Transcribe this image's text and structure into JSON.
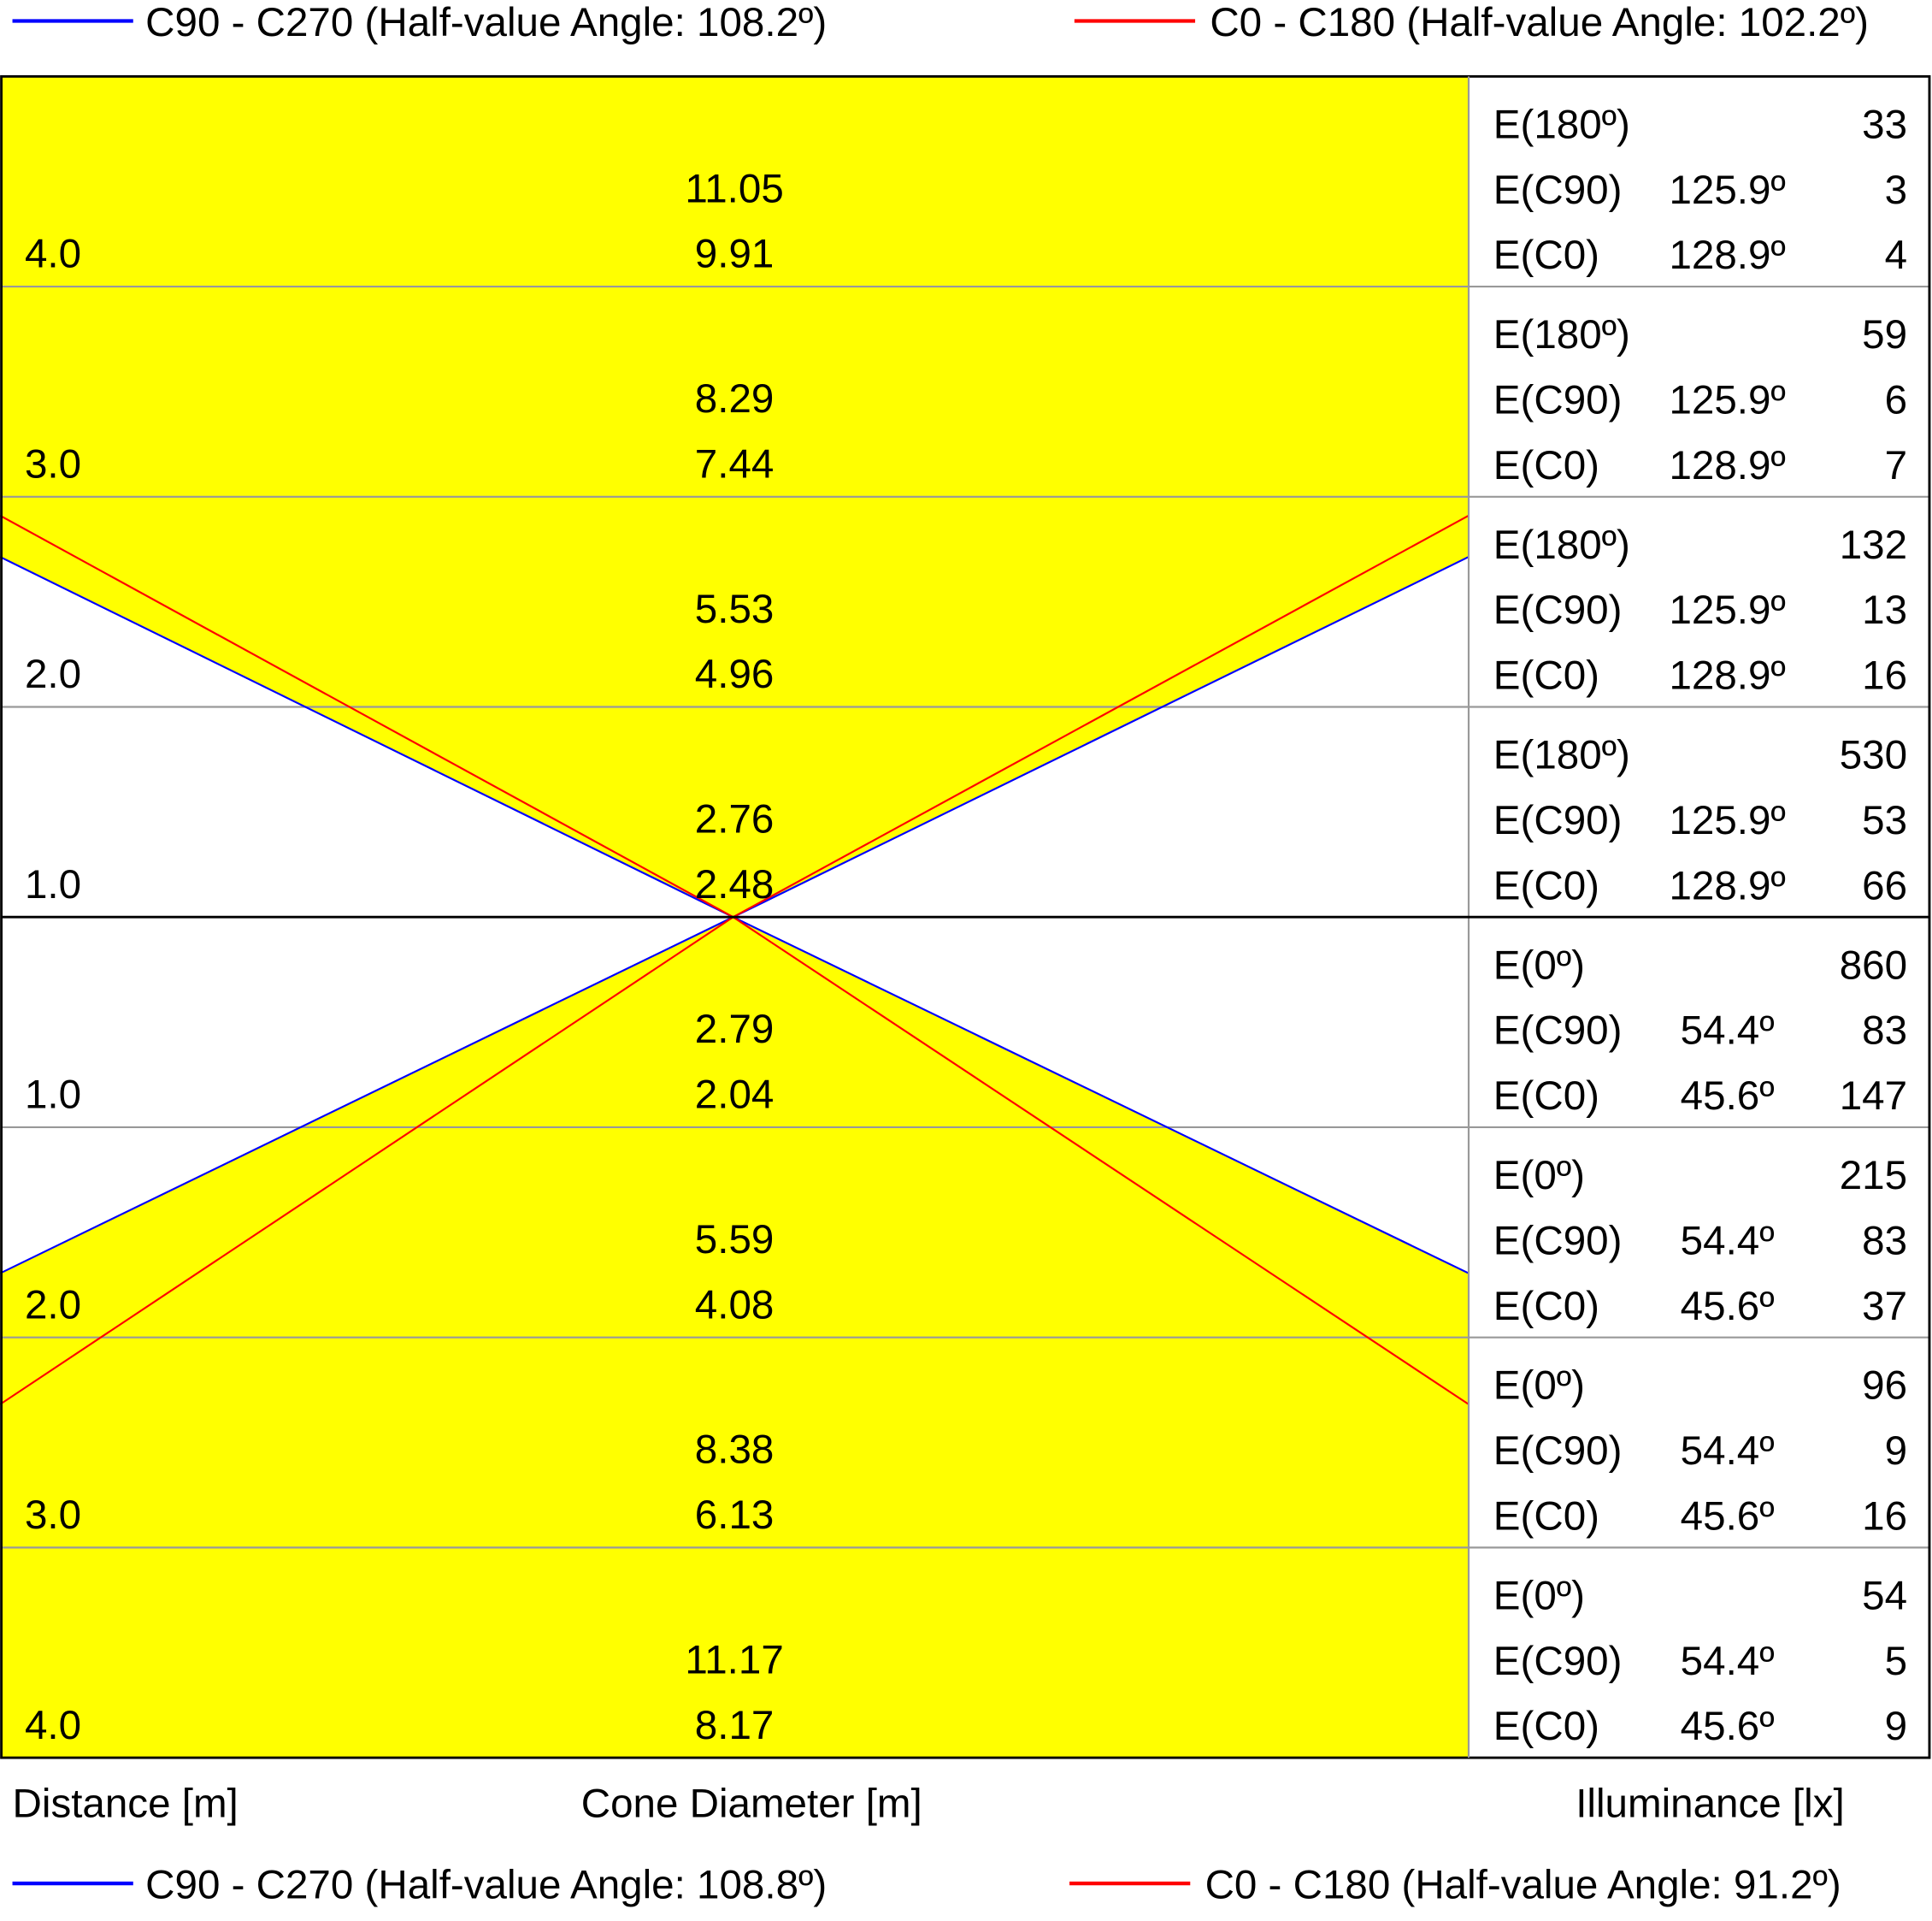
{
  "legend_top": [
    {
      "label": "C90 - C270 (Half-value Angle: 108.2º)",
      "color": "#0000ff",
      "half_value_angle": 108.2
    },
    {
      "label": "C0 - C180 (Half-value Angle: 102.2º)",
      "color": "#ff0000",
      "half_value_angle": 102.2
    }
  ],
  "legend_bottom": [
    {
      "label": "C90 - C270 (Half-value Angle: 108.8º)",
      "color": "#0000ff",
      "half_value_angle": 108.8
    },
    {
      "label": "C0 - C180 (Half-value Angle: 91.2º)",
      "color": "#ff0000",
      "half_value_angle": 91.2
    }
  ],
  "rows": [
    {
      "distance": "4.0",
      "diameters": [
        "11.05",
        "9.91"
      ],
      "illuminance": [
        [
          "E(180º)",
          "",
          "33"
        ],
        [
          "E(C90)",
          "125.9º",
          "3"
        ],
        [
          "E(C0)",
          "128.9º",
          "4"
        ]
      ]
    },
    {
      "distance": "3.0",
      "diameters": [
        "8.29",
        "7.44"
      ],
      "illuminance": [
        [
          "E(180º)",
          "",
          "59"
        ],
        [
          "E(C90)",
          "125.9º",
          "6"
        ],
        [
          "E(C0)",
          "128.9º",
          "7"
        ]
      ]
    },
    {
      "distance": "2.0",
      "diameters": [
        "5.53",
        "4.96"
      ],
      "illuminance": [
        [
          "E(180º)",
          "",
          "132"
        ],
        [
          "E(C90)",
          "125.9º",
          "13"
        ],
        [
          "E(C0)",
          "128.9º",
          "16"
        ]
      ]
    },
    {
      "distance": "1.0",
      "diameters": [
        "2.76",
        "2.48"
      ],
      "illuminance": [
        [
          "E(180º)",
          "",
          "530"
        ],
        [
          "E(C90)",
          "125.9º",
          "53"
        ],
        [
          "E(C0)",
          "128.9º",
          "66"
        ]
      ]
    },
    {
      "distance": "1.0",
      "diameters": [
        "2.79",
        "2.04"
      ],
      "illuminance": [
        [
          "E(0º)",
          "",
          "860"
        ],
        [
          "E(C90)",
          "54.4º",
          "83"
        ],
        [
          "E(C0)",
          "45.6º",
          "147"
        ]
      ]
    },
    {
      "distance": "2.0",
      "diameters": [
        "5.59",
        "4.08"
      ],
      "illuminance": [
        [
          "E(0º)",
          "",
          "215"
        ],
        [
          "E(C90)",
          "54.4º",
          "83"
        ],
        [
          "E(C0)",
          "45.6º",
          "37"
        ]
      ]
    },
    {
      "distance": "3.0",
      "diameters": [
        "8.38",
        "6.13"
      ],
      "illuminance": [
        [
          "E(0º)",
          "",
          "96"
        ],
        [
          "E(C90)",
          "54.4º",
          "9"
        ],
        [
          "E(C0)",
          "45.6º",
          "16"
        ]
      ]
    },
    {
      "distance": "4.0",
      "diameters": [
        "11.17",
        "8.17"
      ],
      "illuminance": [
        [
          "E(0º)",
          "",
          "54"
        ],
        [
          "E(C90)",
          "54.4º",
          "5"
        ],
        [
          "E(C0)",
          "45.6º",
          "9"
        ]
      ]
    }
  ],
  "axis_labels": {
    "distance": "Distance [m]",
    "diameter": "Cone Diameter [m]",
    "illuminance": "Illuminance [lx]"
  }
}
